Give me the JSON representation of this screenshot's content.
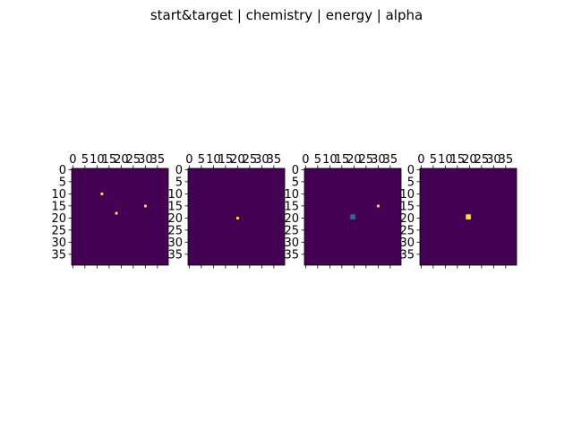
{
  "figure": {
    "title": "start&target | chemistry | energy | alpha"
  },
  "chart_data": [
    {
      "type": "heatmap",
      "grid_size": [
        40,
        40
      ],
      "background_value": 0,
      "colormap": "viridis",
      "xticks": [
        0,
        5,
        10,
        15,
        20,
        25,
        30,
        35
      ],
      "yticks": [
        0,
        5,
        10,
        15,
        20,
        25,
        30,
        35
      ],
      "xtick_labels": [
        "0",
        "5",
        "10",
        "15",
        "20",
        "25",
        "30",
        "35"
      ],
      "ytick_labels": [
        "0",
        "5",
        "10",
        "15",
        "20",
        "25",
        "30",
        "35"
      ],
      "x_axis_position": "top",
      "cells": [
        {
          "x": 12,
          "y": 10,
          "value": 1
        },
        {
          "x": 30,
          "y": 15,
          "value": 1
        },
        {
          "x": 18,
          "y": 18,
          "value": 1
        }
      ],
      "colors": {
        "low": "#440154",
        "high": "#fde725"
      }
    },
    {
      "type": "heatmap",
      "grid_size": [
        40,
        40
      ],
      "background_value": 0,
      "colormap": "viridis",
      "xticks": [
        0,
        5,
        10,
        15,
        20,
        25,
        30,
        35
      ],
      "yticks": [
        0,
        5,
        10,
        15,
        20,
        25,
        30,
        35
      ],
      "xtick_labels": [
        "0",
        "5",
        "10",
        "15",
        "20",
        "25",
        "30",
        "35"
      ],
      "ytick_labels": [
        "0",
        "5",
        "10",
        "15",
        "20",
        "25",
        "30",
        "35"
      ],
      "x_axis_position": "top",
      "cells": [
        {
          "x": 20,
          "y": 20,
          "value": 1
        }
      ],
      "colors": {
        "low": "#440154",
        "high": "#fde725"
      }
    },
    {
      "type": "heatmap",
      "grid_size": [
        40,
        40
      ],
      "background_value": 0,
      "colormap": "viridis",
      "xticks": [
        0,
        5,
        10,
        15,
        20,
        25,
        30,
        35
      ],
      "yticks": [
        0,
        5,
        10,
        15,
        20,
        25,
        30,
        35
      ],
      "xtick_labels": [
        "0",
        "5",
        "10",
        "15",
        "20",
        "25",
        "30",
        "35"
      ],
      "ytick_labels": [
        "0",
        "5",
        "10",
        "15",
        "20",
        "25",
        "30",
        "35"
      ],
      "x_axis_position": "top",
      "cells": [
        {
          "x": 19,
          "y": 19,
          "value": 0.35
        },
        {
          "x": 20,
          "y": 19,
          "value": 0.35
        },
        {
          "x": 19,
          "y": 20,
          "value": 0.35
        },
        {
          "x": 20,
          "y": 20,
          "value": 0.35
        },
        {
          "x": 30,
          "y": 15,
          "value": 1
        }
      ],
      "colors": {
        "low": "#440154",
        "mid": "#31688e",
        "high": "#fde725"
      }
    },
    {
      "type": "heatmap",
      "grid_size": [
        40,
        40
      ],
      "background_value": 0,
      "colormap": "viridis",
      "xticks": [
        0,
        5,
        10,
        15,
        20,
        25,
        30,
        35
      ],
      "yticks": [
        0,
        5,
        10,
        15,
        20,
        25,
        30,
        35
      ],
      "xtick_labels": [
        "0",
        "5",
        "10",
        "15",
        "20",
        "25",
        "30",
        "35"
      ],
      "ytick_labels": [
        "0",
        "5",
        "10",
        "15",
        "20",
        "25",
        "30",
        "35"
      ],
      "x_axis_position": "top",
      "cells": [
        {
          "x": 19,
          "y": 19,
          "value": 1
        },
        {
          "x": 20,
          "y": 19,
          "value": 1
        },
        {
          "x": 19,
          "y": 20,
          "value": 1
        },
        {
          "x": 20,
          "y": 20,
          "value": 1
        }
      ],
      "colors": {
        "low": "#440154",
        "high": "#fde725"
      }
    }
  ]
}
